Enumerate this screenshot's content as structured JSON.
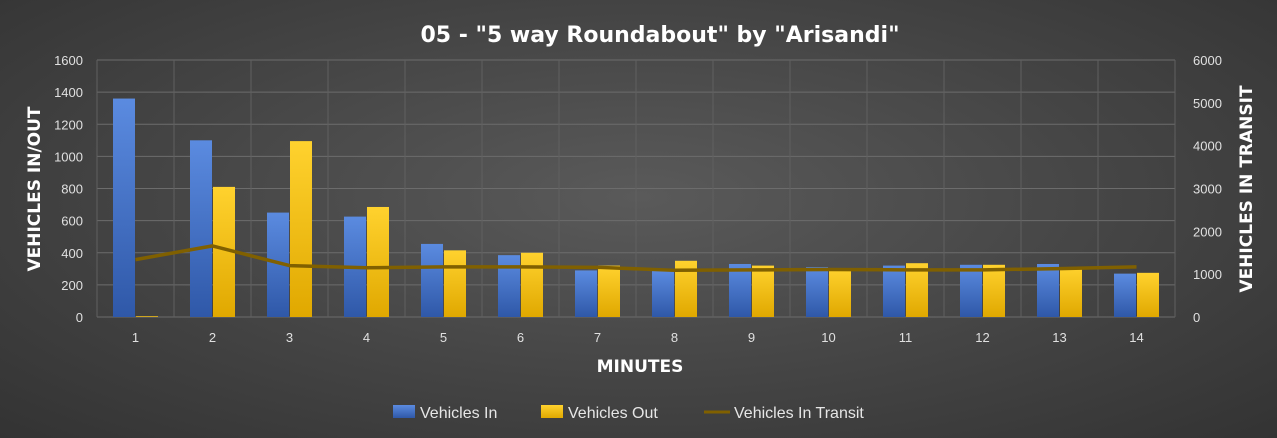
{
  "chart_data": {
    "type": "bar",
    "title": "05 - \"5 way Roundabout\"  by \"Arisandi\"",
    "xlabel": "MINUTES",
    "ylabel": "VEHICLES IN/OUT",
    "y2label": "VEHICLES IN TRANSIT",
    "categories": [
      "1",
      "2",
      "3",
      "4",
      "5",
      "6",
      "7",
      "8",
      "9",
      "10",
      "11",
      "12",
      "13",
      "14"
    ],
    "ylim": [
      0,
      1600
    ],
    "y2lim": [
      0,
      6000
    ],
    "yticks": [
      "0",
      "200",
      "400",
      "600",
      "800",
      "1000",
      "1200",
      "1400",
      "1600"
    ],
    "y2ticks": [
      "0",
      "1000",
      "2000",
      "3000",
      "4000",
      "5000",
      "6000"
    ],
    "grid": true,
    "legend_position": "bottom",
    "series": [
      {
        "name": "Vehicles In",
        "type": "bar",
        "axis": "left",
        "color": "#4472c4",
        "values": [
          1360,
          1100,
          650,
          625,
          455,
          385,
          290,
          290,
          330,
          310,
          320,
          325,
          330,
          270
        ]
      },
      {
        "name": "Vehicles Out",
        "type": "bar",
        "axis": "left",
        "color": "#ffc000",
        "values": [
          5,
          810,
          1095,
          685,
          415,
          400,
          320,
          350,
          320,
          305,
          335,
          325,
          310,
          275
        ]
      },
      {
        "name": "Vehicles In Transit",
        "type": "line",
        "axis": "right",
        "color": "#806000",
        "values": [
          1340,
          1660,
          1200,
          1150,
          1170,
          1170,
          1160,
          1090,
          1100,
          1110,
          1100,
          1100,
          1130,
          1170
        ]
      }
    ]
  }
}
